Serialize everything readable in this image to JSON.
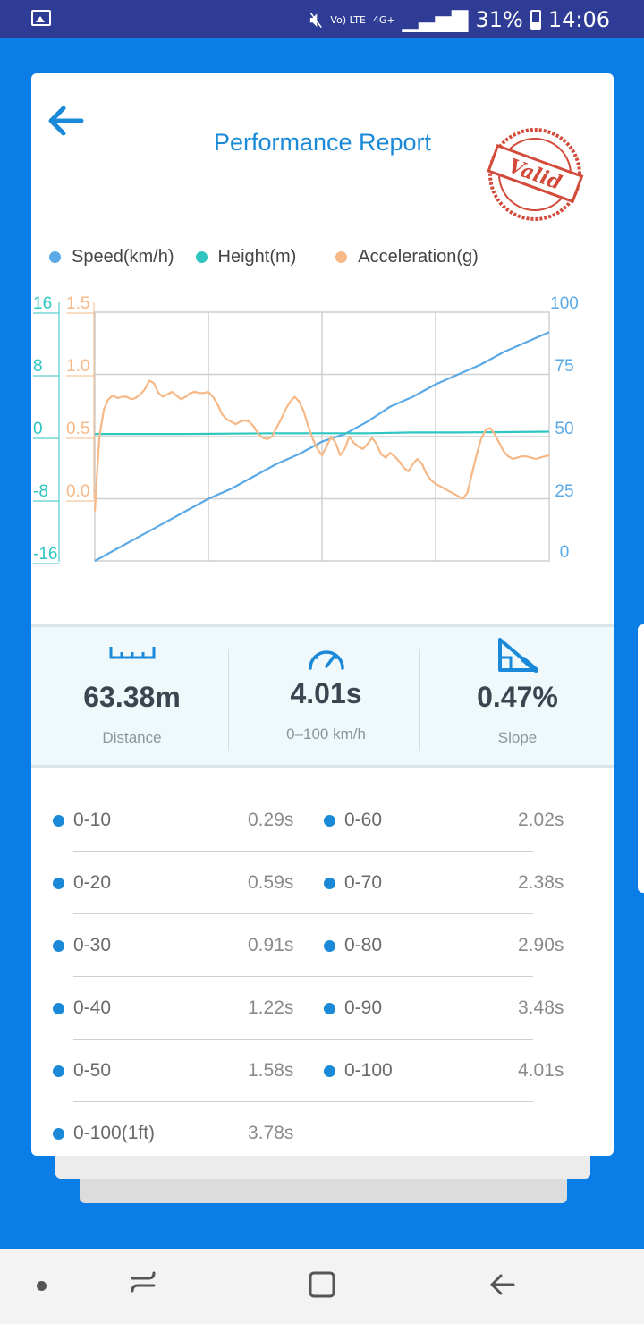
{
  "status_bar": {
    "battery": "31%",
    "time": "14:06",
    "lte_label": "Vo) LTE",
    "net_label": "4G+"
  },
  "header": {
    "title": "Performance Report",
    "stamp_text": "Valid"
  },
  "legend": [
    {
      "label": "Speed(km/h)",
      "color": "#5aa9e6"
    },
    {
      "label": "Height(m)",
      "color": "#2fc6c2"
    },
    {
      "label": "Acceleration(g)",
      "color": "#f5b886"
    }
  ],
  "chart_data": {
    "type": "line",
    "x": [
      0,
      0.02,
      0.04,
      0.06,
      0.08,
      0.1,
      0.12,
      0.15,
      0.2,
      0.25,
      0.3,
      0.35,
      0.4,
      0.45,
      0.5,
      0.55,
      0.6,
      0.65,
      0.7,
      0.75,
      0.8,
      0.85,
      0.9,
      0.95,
      1.0
    ],
    "axes": {
      "height_ticks": [
        "16",
        "8",
        "0",
        "-8",
        "-16"
      ],
      "accel_ticks": [
        "1.5",
        "1.0",
        "0.5",
        "0.0"
      ],
      "speed_ticks": [
        "100",
        "75",
        "50",
        "25",
        "0"
      ],
      "height_range": [
        -16,
        16
      ],
      "accel_range": [
        -0.5,
        1.5
      ],
      "speed_range": [
        0,
        100
      ],
      "grid": true
    },
    "series": [
      {
        "name": "Speed(km/h)",
        "axis": "speed",
        "color": "#5aa9e6",
        "x": [
          0,
          0.05,
          0.1,
          0.15,
          0.2,
          0.25,
          0.3,
          0.35,
          0.4,
          0.45,
          0.5,
          0.55,
          0.6,
          0.65,
          0.7,
          0.75,
          0.8,
          0.85,
          0.9,
          0.95,
          1.0
        ],
        "values": [
          0,
          5,
          10,
          15,
          20,
          25,
          29,
          34,
          39,
          43,
          48,
          51,
          56,
          62,
          66,
          71,
          75,
          79,
          84,
          88,
          92
        ]
      },
      {
        "name": "Height(m)",
        "axis": "height",
        "color": "#2fc6c2",
        "x": [
          0,
          0.1,
          0.2,
          0.3,
          0.4,
          0.5,
          0.6,
          0.7,
          0.8,
          0.9,
          1.0
        ],
        "values": [
          0.1,
          0.1,
          0.1,
          0.15,
          0.2,
          0.2,
          0.2,
          0.3,
          0.3,
          0.35,
          0.4
        ]
      },
      {
        "name": "Acceleration(g)",
        "axis": "accel",
        "color": "#f5b886",
        "x": [
          0,
          0.01,
          0.02,
          0.03,
          0.04,
          0.05,
          0.06,
          0.07,
          0.08,
          0.09,
          0.1,
          0.11,
          0.12,
          0.13,
          0.14,
          0.15,
          0.16,
          0.17,
          0.18,
          0.19,
          0.2,
          0.21,
          0.22,
          0.23,
          0.24,
          0.25,
          0.26,
          0.27,
          0.28,
          0.29,
          0.3,
          0.31,
          0.32,
          0.33,
          0.34,
          0.35,
          0.36,
          0.37,
          0.38,
          0.39,
          0.4,
          0.41,
          0.42,
          0.43,
          0.44,
          0.45,
          0.46,
          0.47,
          0.48,
          0.49,
          0.5,
          0.51,
          0.52,
          0.53,
          0.54,
          0.55,
          0.56,
          0.57,
          0.58,
          0.59,
          0.6,
          0.61,
          0.62,
          0.63,
          0.64,
          0.65,
          0.66,
          0.67,
          0.68,
          0.69,
          0.7,
          0.71,
          0.72,
          0.73,
          0.74,
          0.75,
          0.76,
          0.77,
          0.78,
          0.79,
          0.8,
          0.81,
          0.82,
          0.83,
          0.84,
          0.85,
          0.86,
          0.87,
          0.88,
          0.89,
          0.9,
          0.91,
          0.92,
          0.93,
          0.94,
          0.95,
          0.96,
          0.97,
          0.98,
          0.99,
          1.0
        ],
        "values": [
          -0.1,
          0.5,
          0.72,
          0.8,
          0.83,
          0.81,
          0.82,
          0.82,
          0.8,
          0.81,
          0.84,
          0.88,
          0.95,
          0.93,
          0.85,
          0.82,
          0.84,
          0.86,
          0.83,
          0.8,
          0.82,
          0.85,
          0.86,
          0.85,
          0.85,
          0.86,
          0.82,
          0.76,
          0.68,
          0.64,
          0.62,
          0.6,
          0.62,
          0.63,
          0.62,
          0.58,
          0.52,
          0.49,
          0.48,
          0.5,
          0.57,
          0.64,
          0.72,
          0.78,
          0.82,
          0.78,
          0.7,
          0.58,
          0.48,
          0.4,
          0.35,
          0.42,
          0.5,
          0.45,
          0.35,
          0.4,
          0.5,
          0.45,
          0.42,
          0.4,
          0.44,
          0.49,
          0.44,
          0.36,
          0.33,
          0.37,
          0.34,
          0.3,
          0.25,
          0.22,
          0.28,
          0.32,
          0.28,
          0.2,
          0.15,
          0.12,
          0.1,
          0.08,
          0.06,
          0.04,
          0.02,
          0.0,
          0.05,
          0.2,
          0.35,
          0.48,
          0.55,
          0.57,
          0.52,
          0.45,
          0.38,
          0.34,
          0.32,
          0.33,
          0.34,
          0.34,
          0.33,
          0.32,
          0.33,
          0.34,
          0.35
        ]
      }
    ]
  },
  "stats": [
    {
      "icon": "ruler-icon",
      "value": "63.38m",
      "label": "Distance"
    },
    {
      "icon": "speedometer-icon",
      "value": "4.01s",
      "label": "0–100 km/h"
    },
    {
      "icon": "slope-icon",
      "value": "0.47%",
      "label": "Slope"
    }
  ],
  "times": [
    {
      "left_label": "0-10",
      "left_value": "0.29s",
      "right_label": "0-60",
      "right_value": "2.02s"
    },
    {
      "left_label": "0-20",
      "left_value": "0.59s",
      "right_label": "0-70",
      "right_value": "2.38s"
    },
    {
      "left_label": "0-30",
      "left_value": "0.91s",
      "right_label": "0-80",
      "right_value": "2.90s"
    },
    {
      "left_label": "0-40",
      "left_value": "1.22s",
      "right_label": "0-90",
      "right_value": "3.48s"
    },
    {
      "left_label": "0-50",
      "left_value": "1.58s",
      "right_label": "0-100",
      "right_value": "4.01s"
    },
    {
      "left_label": "0-100(1ft)",
      "left_value": "3.78s",
      "right_label": "",
      "right_value": ""
    }
  ]
}
